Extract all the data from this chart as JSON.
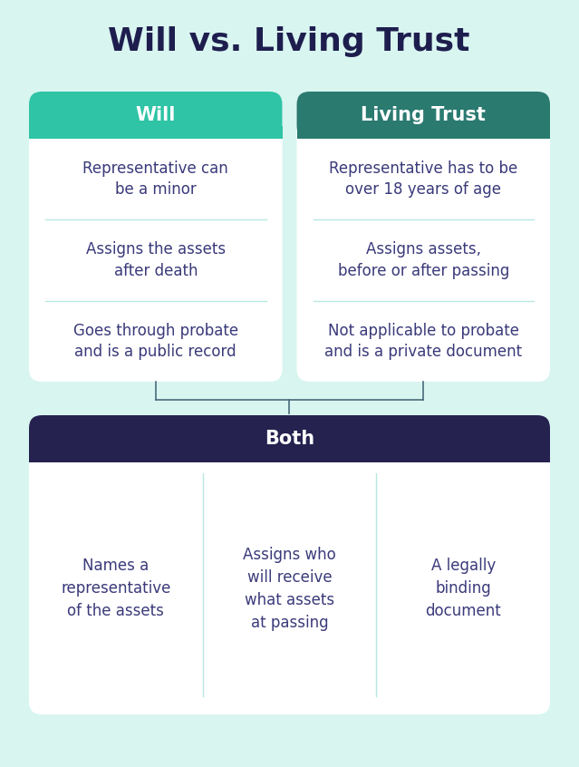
{
  "title": "Will vs. Living Trust",
  "background_color": "#d8f5f0",
  "title_color": "#1e1e4e",
  "title_fontsize": 26,
  "will_header_color": "#2ec4a5",
  "living_trust_header_color": "#2a7a70",
  "both_header_color": "#252250",
  "header_text_color": "#ffffff",
  "card_bg_color": "#ffffff",
  "body_text_color": "#3a3a7a",
  "divider_color": "#b8e8e0",
  "will_title": "Will",
  "living_trust_title": "Living Trust",
  "both_title": "Both",
  "will_items": [
    "Representative can\nbe a minor",
    "Assigns the assets\nafter death",
    "Goes through probate\nand is a public record"
  ],
  "living_trust_items": [
    "Representative has to be\nover 18 years of age",
    "Assigns assets,\nbefore or after passing",
    "Not applicable to probate\nand is a private document"
  ],
  "both_items": [
    "Names a\nrepresentative\nof the assets",
    "Assigns who\nwill receive\nwhat assets\nat passing",
    "A legally\nbinding\ndocument"
  ],
  "connector_color": "#4a6a7a",
  "body_fontsize": 12,
  "header_fontsize": 15
}
